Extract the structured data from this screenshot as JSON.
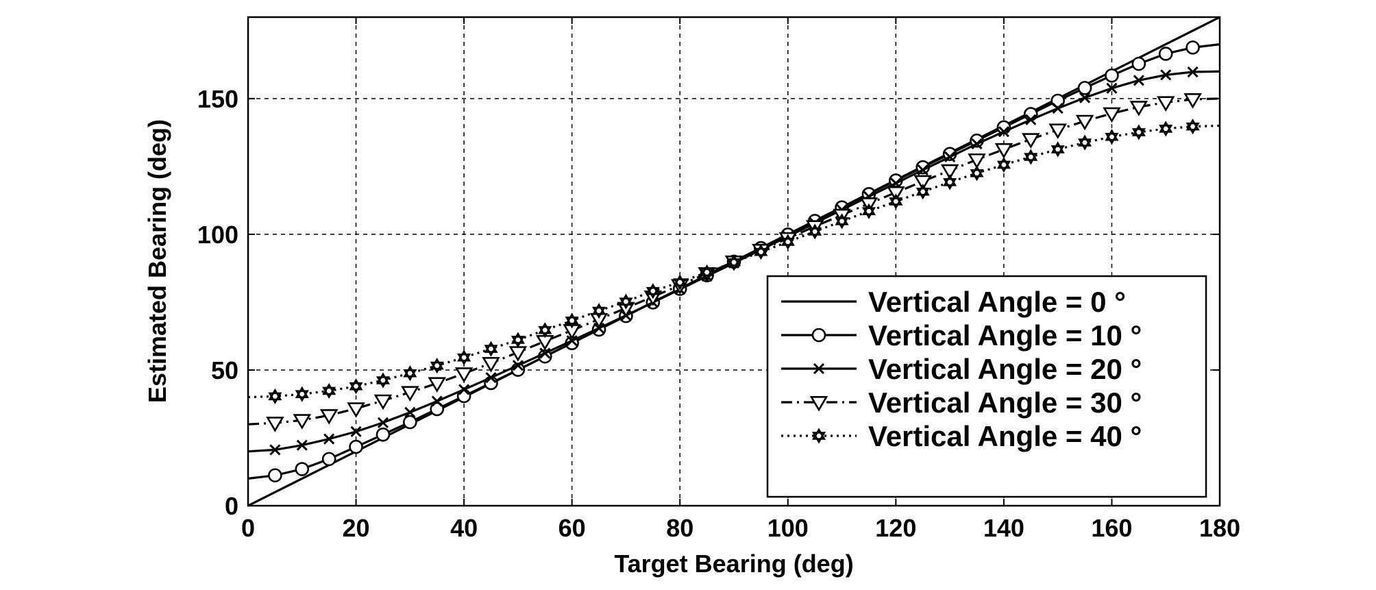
{
  "chart_data": {
    "type": "line",
    "title": "",
    "xlabel": "Target Bearing (deg)",
    "ylabel": "Estimated Bearing (deg)",
    "xlim": [
      0,
      180
    ],
    "ylim": [
      0,
      180
    ],
    "xticks": [
      0,
      20,
      40,
      60,
      80,
      100,
      120,
      140,
      160,
      180
    ],
    "yticks": [
      0,
      50,
      100,
      150
    ],
    "grid": true,
    "legend_position": "bottom-right",
    "series": [
      {
        "name": "Vertical Angle = 0 °",
        "line_style": "solid",
        "marker": "none",
        "x": [
          0,
          5,
          10,
          15,
          20,
          25,
          30,
          35,
          40,
          45,
          50,
          55,
          60,
          65,
          70,
          75,
          80,
          85,
          90,
          95,
          100,
          105,
          110,
          115,
          120,
          125,
          130,
          135,
          140,
          145,
          150,
          155,
          160,
          165,
          170,
          175,
          180
        ],
        "values": [
          0,
          5,
          10,
          15,
          20,
          25,
          30,
          35,
          40,
          45,
          50,
          55,
          60,
          65,
          70,
          75,
          80,
          85,
          90,
          95,
          100,
          105,
          110,
          115,
          120,
          125,
          130,
          135,
          140,
          145,
          150,
          155,
          160,
          165,
          170,
          175,
          180
        ]
      },
      {
        "name": "Vertical Angle = 10 °",
        "line_style": "solid",
        "marker": "circle",
        "x": [
          0,
          5,
          10,
          15,
          20,
          25,
          30,
          35,
          40,
          45,
          50,
          55,
          60,
          65,
          70,
          75,
          80,
          85,
          90,
          95,
          100,
          105,
          110,
          115,
          120,
          125,
          130,
          135,
          140,
          145,
          150,
          155,
          160,
          165,
          170,
          175,
          180
        ],
        "values": [
          10,
          11.2,
          13.5,
          17.2,
          21.7,
          26.2,
          30.8,
          35.6,
          40.4,
          45.2,
          50.1,
          55.0,
          59.9,
          64.9,
          69.9,
          74.9,
          79.9,
          84.9,
          89.9,
          94.9,
          99.9,
          104.9,
          109.9,
          114.8,
          119.8,
          124.7,
          129.6,
          134.5,
          139.4,
          144.3,
          149.2,
          153.9,
          158.5,
          162.8,
          166.5,
          168.8,
          170
        ]
      },
      {
        "name": "Vertical Angle = 20 °",
        "line_style": "solid",
        "marker": "x",
        "x": [
          0,
          5,
          10,
          15,
          20,
          25,
          30,
          35,
          40,
          45,
          50,
          55,
          60,
          65,
          70,
          75,
          80,
          85,
          90,
          95,
          100,
          105,
          110,
          115,
          120,
          125,
          130,
          135,
          140,
          145,
          150,
          155,
          160,
          165,
          170,
          175,
          180
        ],
        "values": [
          20,
          20.6,
          22.3,
          24.6,
          27.3,
          30.6,
          34.4,
          38.5,
          42.8,
          47.2,
          51.7,
          56.2,
          60.8,
          65.4,
          70.1,
          74.9,
          79.7,
          84.6,
          89.4,
          94.3,
          99.2,
          104.1,
          109.0,
          113.9,
          118.8,
          123.7,
          128.5,
          133.3,
          137.8,
          142.2,
          146.4,
          150.3,
          153.8,
          156.7,
          158.7,
          159.8,
          160
        ]
      },
      {
        "name": "Vertical Angle = 30 °",
        "line_style": "dashdot",
        "marker": "triangle-down",
        "x": [
          0,
          5,
          10,
          15,
          20,
          25,
          30,
          35,
          40,
          45,
          50,
          55,
          60,
          65,
          70,
          75,
          80,
          85,
          90,
          95,
          100,
          105,
          110,
          115,
          120,
          125,
          130,
          135,
          140,
          145,
          150,
          155,
          160,
          165,
          170,
          175,
          180
        ],
        "values": [
          30,
          30.5,
          31.5,
          33.3,
          35.8,
          38.7,
          41.8,
          45.1,
          48.7,
          52.5,
          56.5,
          60.6,
          64.6,
          68.7,
          72.8,
          77.0,
          81.2,
          85.6,
          89.9,
          94.2,
          98.5,
          102.9,
          107.1,
          111.3,
          115.4,
          119.5,
          123.5,
          127.5,
          131.3,
          135.0,
          138.5,
          141.7,
          144.5,
          146.9,
          148.6,
          149.7,
          150
        ]
      },
      {
        "name": "Vertical Angle = 40 °",
        "line_style": "dotted",
        "marker": "hexagram",
        "x": [
          0,
          5,
          10,
          15,
          20,
          25,
          30,
          35,
          40,
          45,
          50,
          55,
          60,
          65,
          70,
          75,
          80,
          85,
          90,
          95,
          100,
          105,
          110,
          115,
          120,
          125,
          130,
          135,
          140,
          145,
          150,
          155,
          160,
          165,
          170,
          175,
          180
        ],
        "values": [
          40,
          40.3,
          41.1,
          42.3,
          44.0,
          46.2,
          48.8,
          51.6,
          54.6,
          57.8,
          61.1,
          64.7,
          68.2,
          71.8,
          75.2,
          79.1,
          82.3,
          86.0,
          89.7,
          93.5,
          97.2,
          101.0,
          104.8,
          108.5,
          112.1,
          115.7,
          119.2,
          122.5,
          125.6,
          128.5,
          131.3,
          133.8,
          135.9,
          137.6,
          138.9,
          139.7,
          140
        ]
      }
    ]
  }
}
